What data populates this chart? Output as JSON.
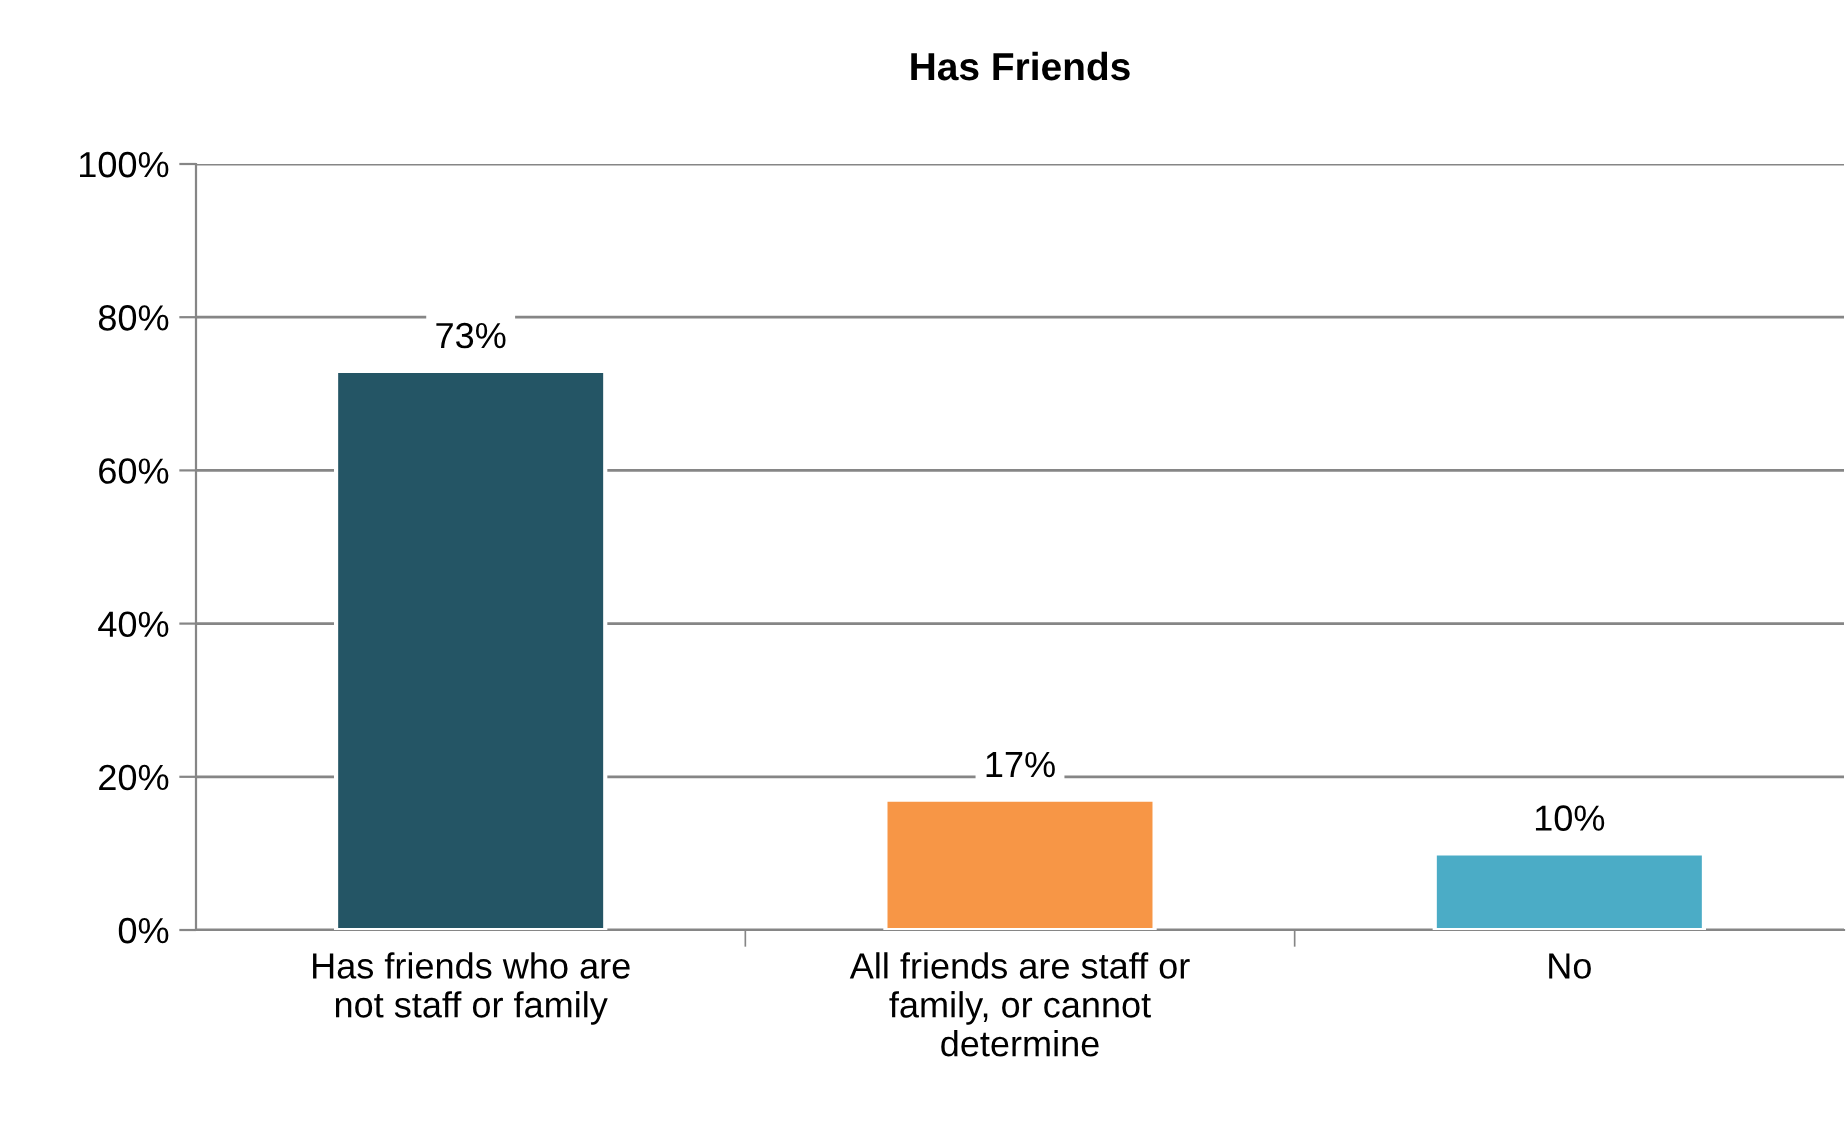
{
  "chart_data": {
    "type": "bar",
    "title": "Has Friends",
    "categories": [
      "Has friends who are\nnot staff or family",
      "All friends are staff or\nfamily, or cannot\ndetermine",
      "No"
    ],
    "values": [
      73,
      17,
      10
    ],
    "colors": [
      "#245565",
      "#f79646",
      "#4bacc6"
    ],
    "value_labels": [
      "73%",
      "17%",
      "10%"
    ],
    "ylim": [
      0,
      100
    ],
    "yticks": [
      {
        "value": 0,
        "label": "0%"
      },
      {
        "value": 20,
        "label": "20%"
      },
      {
        "value": 40,
        "label": "40%"
      },
      {
        "value": 60,
        "label": "60%"
      },
      {
        "value": 80,
        "label": "80%"
      },
      {
        "value": 100,
        "label": "100%"
      }
    ],
    "grid": "y",
    "legend": false
  }
}
